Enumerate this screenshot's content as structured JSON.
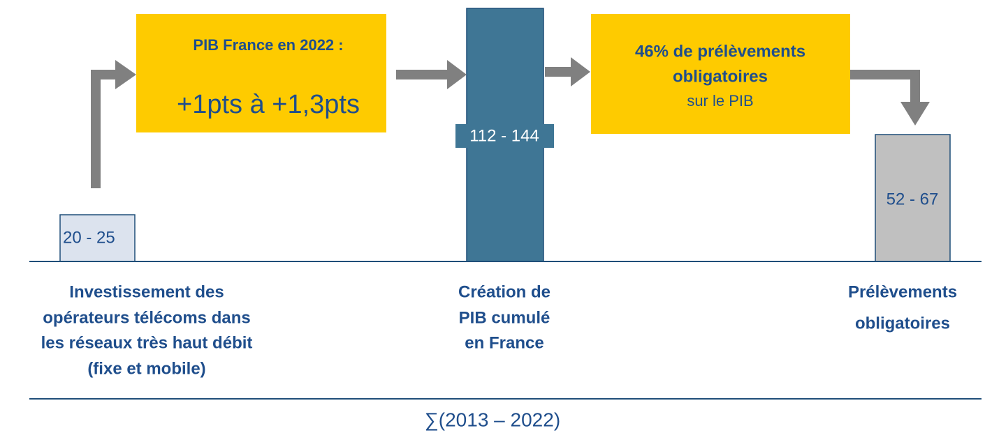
{
  "flow": {
    "investment": {
      "range": "20 - 25",
      "label": [
        "Investissement des",
        "opérateurs télécoms dans",
        "les réseaux très haut débit",
        "(fixe et mobile)"
      ]
    },
    "gdp_effect": {
      "title": "PIB France en 2022 :",
      "value": "+1pts à +1,3pts"
    },
    "gdp_creation": {
      "range": "112 - 144",
      "label": [
        "Création de",
        "PIB cumulé",
        "en France"
      ]
    },
    "tax_rate": {
      "lines": [
        "46% de prélèvements",
        "obligatoires"
      ],
      "note": "sur le PIB"
    },
    "taxes": {
      "range": "52 - 67",
      "label": [
        "Prélèvements",
        "obligatoires"
      ]
    },
    "period": "∑(2013 – 2022)"
  }
}
